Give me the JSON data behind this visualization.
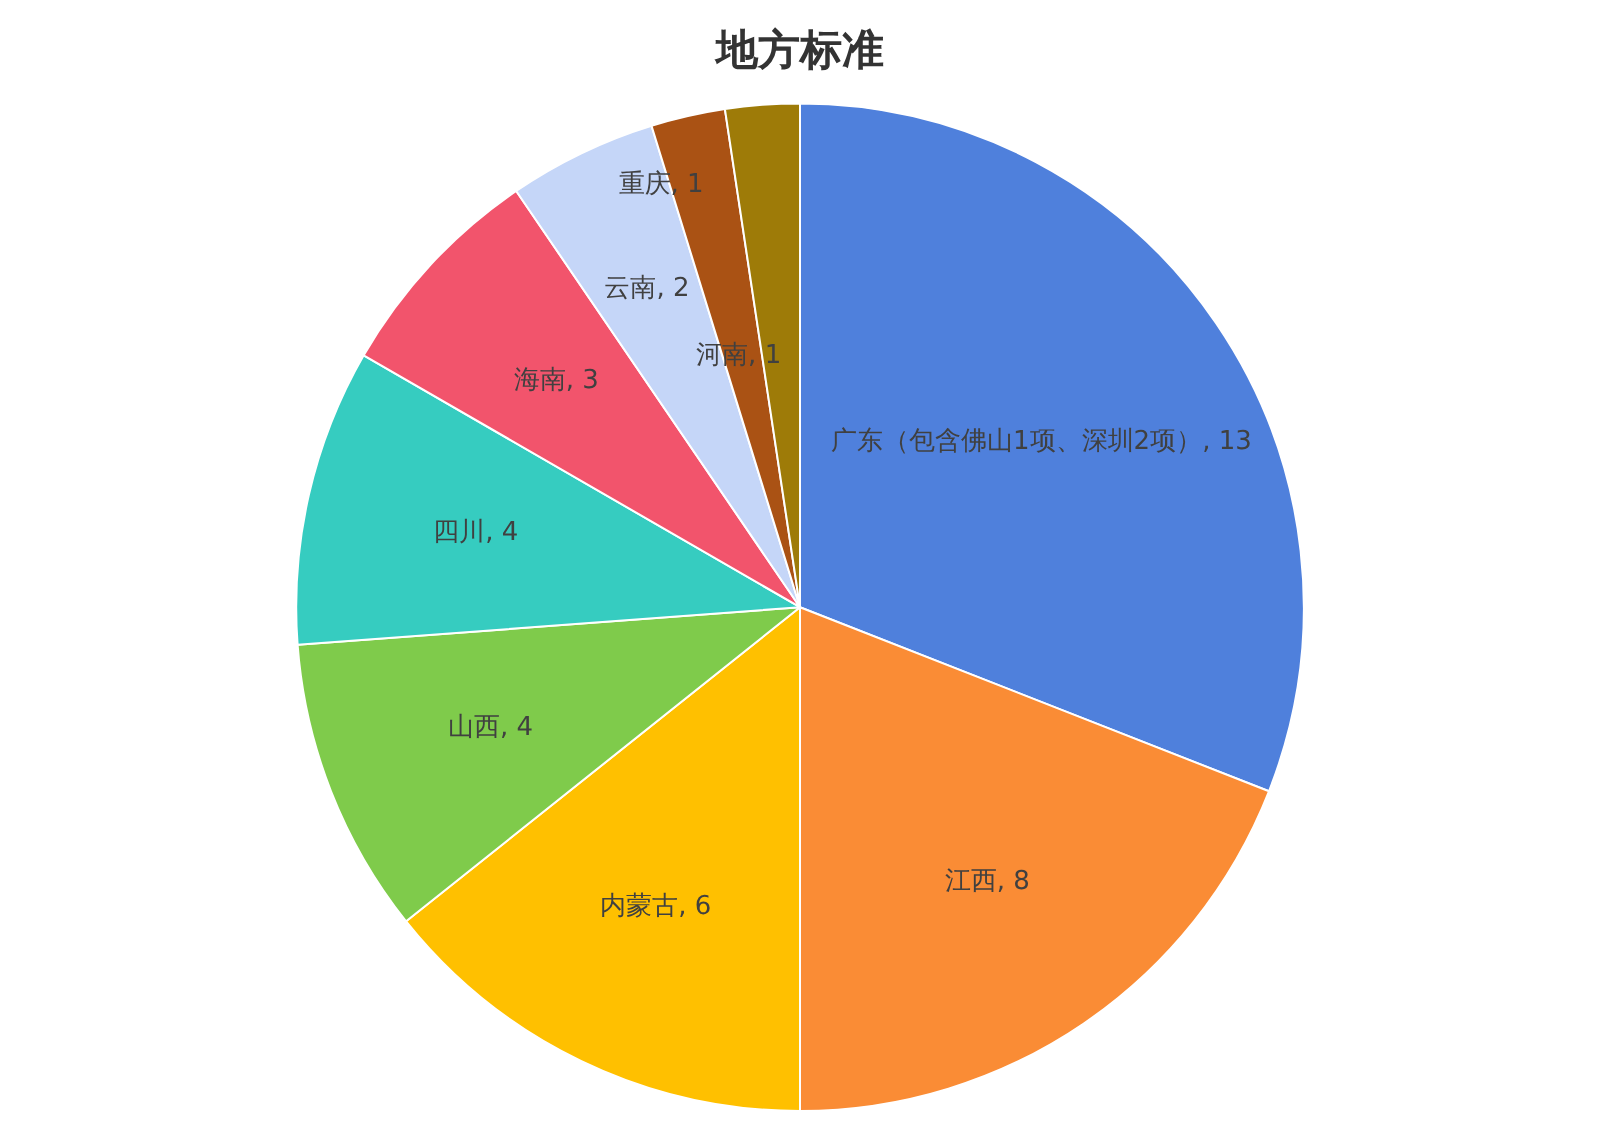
{
  "chart_data": {
    "type": "pie",
    "title": "地方标准",
    "categories": [
      "广东（包含佛山1项、深圳2项）",
      "江西",
      "内蒙古",
      "山西",
      "四川",
      "海南",
      "云南",
      "重庆",
      "河南"
    ],
    "values": [
      13,
      8,
      6,
      4,
      4,
      3,
      2,
      1,
      1
    ],
    "value_labels": [
      ", 13",
      ", 8",
      ", 6",
      ", 4",
      ", 4",
      ", 3",
      ", 2",
      ", 1",
      ", 1"
    ],
    "colors": [
      "#4f80dc",
      "#fa8c35",
      "#ffc000",
      "#7fcb4b",
      "#36ccc0",
      "#f2546c",
      "#c5d6f8",
      "#aa5214",
      "#9e7b08"
    ]
  }
}
